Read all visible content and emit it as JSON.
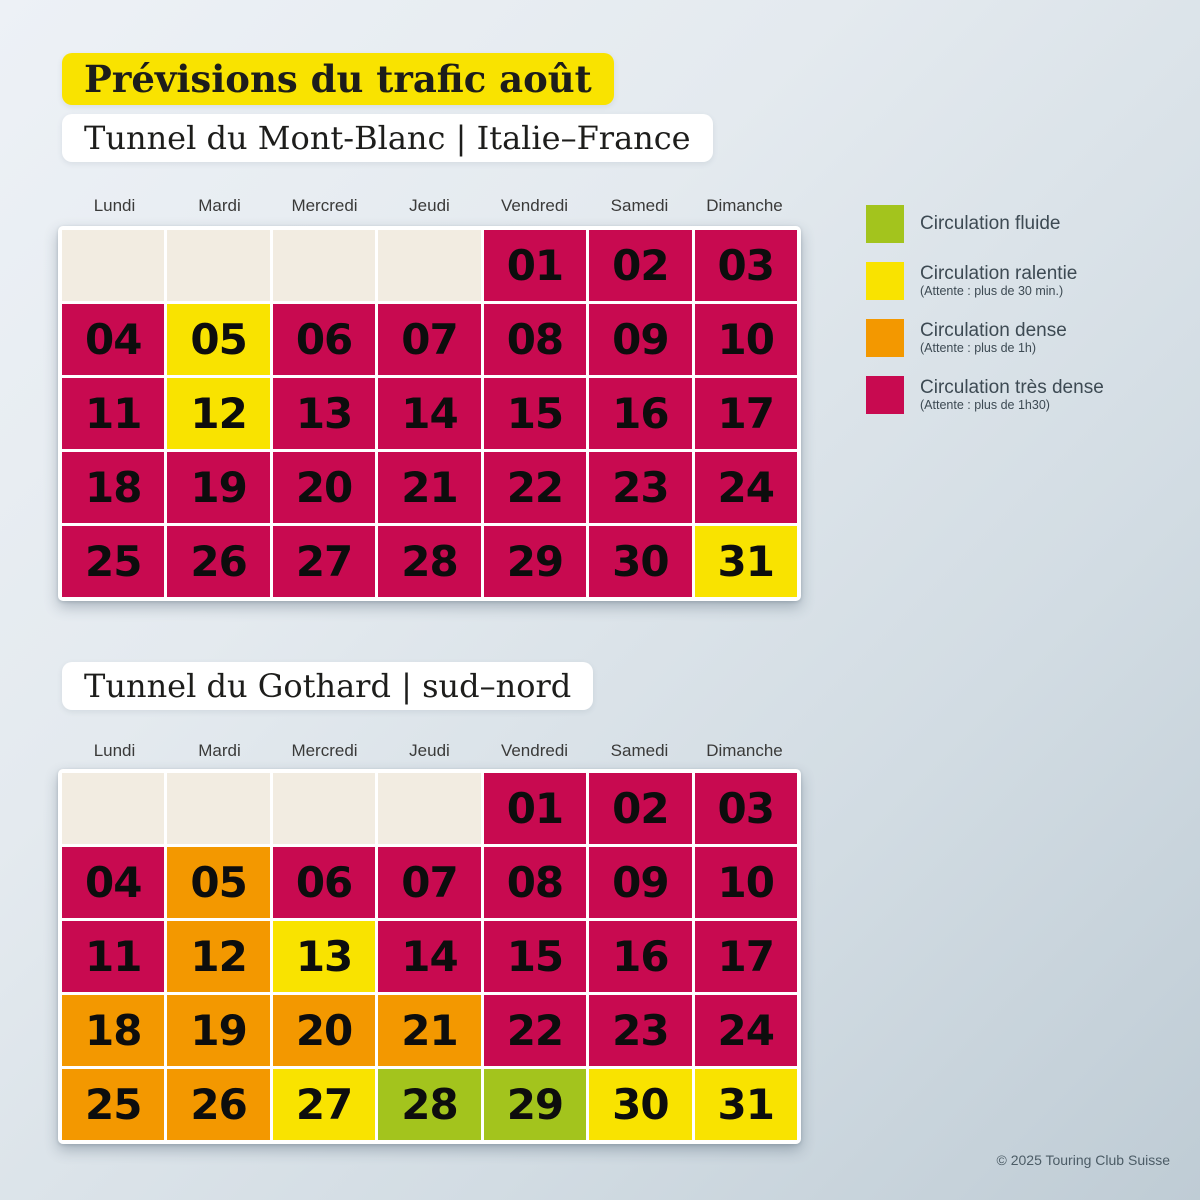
{
  "title": {
    "text": "Prévisions du trafic août",
    "highlight_color": "#f9e300"
  },
  "footer": "© 2025 Touring Club Suisse",
  "day_headers": [
    "Lundi",
    "Mardi",
    "Mercredi",
    "Jeudi",
    "Vendredi",
    "Samedi",
    "Dimanche"
  ],
  "status_colors": {
    "fluide": "#a3c41d",
    "ralentie": "#f9e300",
    "dense": "#f39800",
    "tres-dense": "#c80a50",
    "empty": "#f2ece1"
  },
  "legend": {
    "items": [
      {
        "key": "fluide",
        "label": "Circulation fluide",
        "sub": "",
        "color": "#a3c41d"
      },
      {
        "key": "ralentie",
        "label": "Circulation ralentie",
        "sub": "(Attente : plus de 30 min.)",
        "color": "#f9e300"
      },
      {
        "key": "dense",
        "label": "Circulation dense",
        "sub": "(Attente : plus de 1h)",
        "color": "#f39800"
      },
      {
        "key": "tres-dense",
        "label": "Circulation très dense",
        "sub": "(Attente : plus de 1h30)",
        "color": "#c80a50"
      }
    ]
  },
  "chart_data": [
    {
      "type": "heatmap",
      "title": "Tunnel du Mont-Blanc | Italie–France",
      "x_labels": [
        "Lundi",
        "Mardi",
        "Mercredi",
        "Jeudi",
        "Vendredi",
        "Samedi",
        "Dimanche"
      ],
      "legend_position": "right",
      "leading_empty": 4,
      "days": [
        {
          "label": "01",
          "status": "tres-dense"
        },
        {
          "label": "02",
          "status": "tres-dense"
        },
        {
          "label": "03",
          "status": "tres-dense"
        },
        {
          "label": "04",
          "status": "tres-dense"
        },
        {
          "label": "05",
          "status": "ralentie"
        },
        {
          "label": "06",
          "status": "tres-dense"
        },
        {
          "label": "07",
          "status": "tres-dense"
        },
        {
          "label": "08",
          "status": "tres-dense"
        },
        {
          "label": "09",
          "status": "tres-dense"
        },
        {
          "label": "10",
          "status": "tres-dense"
        },
        {
          "label": "11",
          "status": "tres-dense"
        },
        {
          "label": "12",
          "status": "ralentie"
        },
        {
          "label": "13",
          "status": "tres-dense"
        },
        {
          "label": "14",
          "status": "tres-dense"
        },
        {
          "label": "15",
          "status": "tres-dense"
        },
        {
          "label": "16",
          "status": "tres-dense"
        },
        {
          "label": "17",
          "status": "tres-dense"
        },
        {
          "label": "18",
          "status": "tres-dense"
        },
        {
          "label": "19",
          "status": "tres-dense"
        },
        {
          "label": "20",
          "status": "tres-dense"
        },
        {
          "label": "21",
          "status": "tres-dense"
        },
        {
          "label": "22",
          "status": "tres-dense"
        },
        {
          "label": "23",
          "status": "tres-dense"
        },
        {
          "label": "24",
          "status": "tres-dense"
        },
        {
          "label": "25",
          "status": "tres-dense"
        },
        {
          "label": "26",
          "status": "tres-dense"
        },
        {
          "label": "27",
          "status": "tres-dense"
        },
        {
          "label": "28",
          "status": "tres-dense"
        },
        {
          "label": "29",
          "status": "tres-dense"
        },
        {
          "label": "30",
          "status": "tres-dense"
        },
        {
          "label": "31",
          "status": "ralentie"
        }
      ]
    },
    {
      "type": "heatmap",
      "title": "Tunnel du Gothard | sud–nord",
      "x_labels": [
        "Lundi",
        "Mardi",
        "Mercredi",
        "Jeudi",
        "Vendredi",
        "Samedi",
        "Dimanche"
      ],
      "legend_position": "right",
      "leading_empty": 4,
      "days": [
        {
          "label": "01",
          "status": "tres-dense"
        },
        {
          "label": "02",
          "status": "tres-dense"
        },
        {
          "label": "03",
          "status": "tres-dense"
        },
        {
          "label": "04",
          "status": "tres-dense"
        },
        {
          "label": "05",
          "status": "dense"
        },
        {
          "label": "06",
          "status": "tres-dense"
        },
        {
          "label": "07",
          "status": "tres-dense"
        },
        {
          "label": "08",
          "status": "tres-dense"
        },
        {
          "label": "09",
          "status": "tres-dense"
        },
        {
          "label": "10",
          "status": "tres-dense"
        },
        {
          "label": "11",
          "status": "tres-dense"
        },
        {
          "label": "12",
          "status": "dense"
        },
        {
          "label": "13",
          "status": "ralentie"
        },
        {
          "label": "14",
          "status": "tres-dense"
        },
        {
          "label": "15",
          "status": "tres-dense"
        },
        {
          "label": "16",
          "status": "tres-dense"
        },
        {
          "label": "17",
          "status": "tres-dense"
        },
        {
          "label": "18",
          "status": "dense"
        },
        {
          "label": "19",
          "status": "dense"
        },
        {
          "label": "20",
          "status": "dense"
        },
        {
          "label": "21",
          "status": "dense"
        },
        {
          "label": "22",
          "status": "tres-dense"
        },
        {
          "label": "23",
          "status": "tres-dense"
        },
        {
          "label": "24",
          "status": "tres-dense"
        },
        {
          "label": "25",
          "status": "dense"
        },
        {
          "label": "26",
          "status": "dense"
        },
        {
          "label": "27",
          "status": "ralentie"
        },
        {
          "label": "28",
          "status": "fluide"
        },
        {
          "label": "29",
          "status": "fluide"
        },
        {
          "label": "30",
          "status": "ralentie"
        },
        {
          "label": "31",
          "status": "ralentie"
        }
      ]
    }
  ]
}
